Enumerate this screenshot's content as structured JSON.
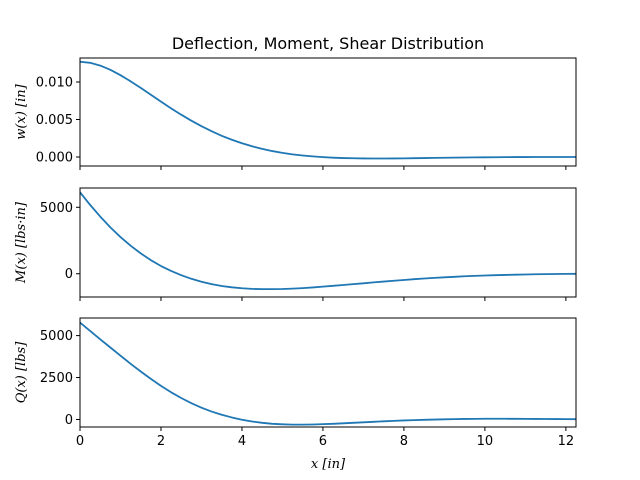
{
  "chart_data": {
    "type": "line",
    "title": "Deflection, Moment, Shear Distribution",
    "xlabel": "x [in]",
    "xlim": [
      0,
      12.25
    ],
    "xticks": [
      0,
      2,
      4,
      6,
      8,
      10,
      12
    ],
    "grid": false,
    "legend": "none",
    "line_color": "#1f77b4",
    "subplots": [
      {
        "ylabel": "w(x) [in]",
        "ylim": [
          -0.0012,
          0.0132
        ],
        "yticks": [
          0.0,
          0.005,
          0.01
        ],
        "ytick_labels": [
          "0.000",
          "0.005",
          "0.010"
        ],
        "x": [
          0,
          0.25,
          0.5,
          0.75,
          1,
          1.25,
          1.5,
          1.75,
          2,
          2.25,
          2.5,
          2.75,
          3,
          3.25,
          3.5,
          3.75,
          4,
          4.25,
          4.5,
          4.75,
          5,
          5.25,
          5.5,
          5.75,
          6,
          6.25,
          6.5,
          6.75,
          7,
          7.25,
          7.5,
          7.75,
          8,
          8.25,
          8.5,
          8.75,
          9,
          9.25,
          9.5,
          9.75,
          10,
          10.25,
          10.5,
          10.75,
          11,
          11.25,
          11.5,
          11.75,
          12,
          12.25
        ],
        "y": [
          0.0127,
          0.01256,
          0.01219,
          0.01162,
          0.01091,
          0.01009,
          0.00921,
          0.0083,
          0.00738,
          0.00649,
          0.00564,
          0.00484,
          0.00411,
          0.00344,
          0.00283,
          0.0023,
          0.00183,
          0.00143,
          0.00108,
          0.00079,
          0.00055,
          0.00035,
          0.0002,
          8e-05,
          -2e-05,
          -9e-05,
          -0.00014,
          -0.00017,
          -0.00019,
          -0.0002,
          -0.0002,
          -0.00019,
          -0.00018,
          -0.00016,
          -0.00014,
          -0.00012,
          -0.0001,
          -8e-05,
          -7e-05,
          -5e-05,
          -4e-05,
          -3e-05,
          -2e-05,
          -1e-05,
          -1e-05,
          0.0,
          0.0,
          0.0,
          0.0,
          0.0
        ]
      },
      {
        "ylabel": "M(x) [lbs·in]",
        "ylim": [
          -1750,
          6450
        ],
        "yticks": [
          0,
          5000
        ],
        "ytick_labels": [
          "0",
          "5000"
        ],
        "x": [
          0,
          0.25,
          0.5,
          0.75,
          1,
          1.25,
          1.5,
          1.75,
          2,
          2.25,
          2.5,
          2.75,
          3,
          3.25,
          3.5,
          3.75,
          4,
          4.25,
          4.5,
          4.75,
          5,
          5.25,
          5.5,
          5.75,
          6,
          6.25,
          6.5,
          6.75,
          7,
          7.25,
          7.5,
          7.75,
          8,
          8.25,
          8.5,
          8.75,
          9,
          9.25,
          9.5,
          9.75,
          10,
          10.25,
          10.5,
          10.75,
          11,
          11.25,
          11.5,
          11.75,
          12,
          12.25
        ],
        "y": [
          6130,
          5180,
          4300,
          3490,
          2760,
          2110,
          1530,
          1020,
          580,
          210,
          -110,
          -380,
          -600,
          -780,
          -920,
          -1020,
          -1090,
          -1140,
          -1160,
          -1160,
          -1150,
          -1120,
          -1080,
          -1030,
          -970,
          -910,
          -850,
          -780,
          -720,
          -650,
          -590,
          -530,
          -470,
          -410,
          -360,
          -310,
          -270,
          -230,
          -190,
          -160,
          -130,
          -110,
          -90,
          -70,
          -55,
          -40,
          -30,
          -20,
          -12,
          -5
        ]
      },
      {
        "ylabel": "Q(x) [lbs]",
        "ylim": [
          -450,
          6050
        ],
        "yticks": [
          0,
          2500,
          5000
        ],
        "ytick_labels": [
          "0",
          "2500",
          "5000"
        ],
        "x": [
          0,
          0.25,
          0.5,
          0.75,
          1,
          1.25,
          1.5,
          1.75,
          2,
          2.25,
          2.5,
          2.75,
          3,
          3.25,
          3.5,
          3.75,
          4,
          4.25,
          4.5,
          4.75,
          5,
          5.25,
          5.5,
          5.75,
          6,
          6.25,
          6.5,
          6.75,
          7,
          7.25,
          7.5,
          7.75,
          8,
          8.25,
          8.5,
          8.75,
          9,
          9.25,
          9.5,
          9.75,
          10,
          10.25,
          10.5,
          10.75,
          11,
          11.25,
          11.5,
          11.75,
          12,
          12.25
        ],
        "y": [
          5780,
          5280,
          4780,
          4290,
          3800,
          3320,
          2860,
          2420,
          2000,
          1620,
          1280,
          970,
          700,
          470,
          280,
          120,
          -20,
          -120,
          -200,
          -260,
          -290,
          -310,
          -310,
          -300,
          -280,
          -260,
          -230,
          -200,
          -170,
          -140,
          -110,
          -85,
          -60,
          -40,
          -20,
          -5,
          10,
          20,
          30,
          35,
          40,
          40,
          40,
          38,
          35,
          32,
          28,
          24,
          20,
          16
        ]
      }
    ]
  }
}
